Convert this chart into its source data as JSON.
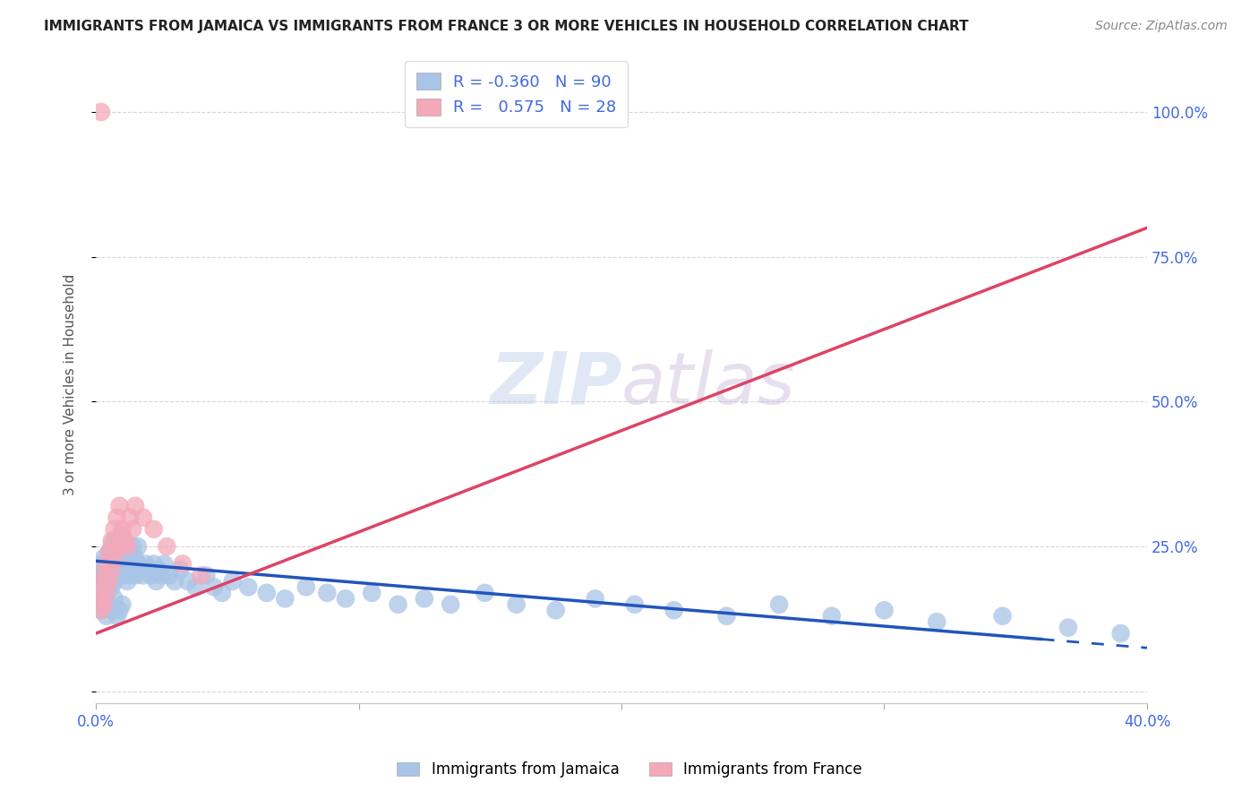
{
  "title": "IMMIGRANTS FROM JAMAICA VS IMMIGRANTS FROM FRANCE 3 OR MORE VEHICLES IN HOUSEHOLD CORRELATION CHART",
  "source": "Source: ZipAtlas.com",
  "ylabel": "3 or more Vehicles in Household",
  "xlim": [
    0.0,
    0.4
  ],
  "ylim": [
    -0.02,
    1.08
  ],
  "watermark_part1": "ZIP",
  "watermark_part2": "atlas",
  "legend_jamaica_R": "-0.360",
  "legend_jamaica_N": "90",
  "legend_france_R": "0.575",
  "legend_france_N": "28",
  "jamaica_color": "#a8c4e6",
  "france_color": "#f4a8b8",
  "jamaica_line_color": "#2255bb",
  "france_line_color": "#dd4466",
  "background_color": "#ffffff",
  "grid_color": "#cccccc",
  "title_color": "#222222",
  "right_tick_color": "#4169e1",
  "bottom_tick_color": "#4169e1",
  "jamaica_x": [
    0.001,
    0.002,
    0.002,
    0.003,
    0.003,
    0.003,
    0.004,
    0.004,
    0.004,
    0.005,
    0.005,
    0.005,
    0.006,
    0.006,
    0.006,
    0.007,
    0.007,
    0.007,
    0.008,
    0.008,
    0.009,
    0.009,
    0.01,
    0.01,
    0.01,
    0.011,
    0.011,
    0.012,
    0.012,
    0.013,
    0.013,
    0.014,
    0.014,
    0.015,
    0.015,
    0.016,
    0.016,
    0.017,
    0.018,
    0.019,
    0.02,
    0.021,
    0.022,
    0.023,
    0.024,
    0.025,
    0.026,
    0.028,
    0.03,
    0.032,
    0.035,
    0.038,
    0.042,
    0.045,
    0.048,
    0.052,
    0.058,
    0.065,
    0.072,
    0.08,
    0.088,
    0.095,
    0.105,
    0.115,
    0.125,
    0.135,
    0.148,
    0.16,
    0.175,
    0.19,
    0.205,
    0.22,
    0.24,
    0.26,
    0.28,
    0.3,
    0.32,
    0.345,
    0.37,
    0.39,
    0.001,
    0.002,
    0.003,
    0.004,
    0.005,
    0.006,
    0.007,
    0.008,
    0.009,
    0.01
  ],
  "jamaica_y": [
    0.2,
    0.19,
    0.22,
    0.18,
    0.21,
    0.23,
    0.17,
    0.2,
    0.22,
    0.19,
    0.21,
    0.24,
    0.18,
    0.2,
    0.25,
    0.19,
    0.22,
    0.26,
    0.2,
    0.23,
    0.21,
    0.24,
    0.2,
    0.22,
    0.27,
    0.21,
    0.23,
    0.19,
    0.22,
    0.2,
    0.24,
    0.21,
    0.25,
    0.2,
    0.23,
    0.22,
    0.25,
    0.21,
    0.2,
    0.22,
    0.21,
    0.2,
    0.22,
    0.19,
    0.21,
    0.2,
    0.22,
    0.2,
    0.19,
    0.21,
    0.19,
    0.18,
    0.2,
    0.18,
    0.17,
    0.19,
    0.18,
    0.17,
    0.16,
    0.18,
    0.17,
    0.16,
    0.17,
    0.15,
    0.16,
    0.15,
    0.17,
    0.15,
    0.14,
    0.16,
    0.15,
    0.14,
    0.13,
    0.15,
    0.13,
    0.14,
    0.12,
    0.13,
    0.11,
    0.1,
    0.15,
    0.14,
    0.16,
    0.13,
    0.15,
    0.14,
    0.16,
    0.13,
    0.14,
    0.15
  ],
  "france_x": [
    0.001,
    0.002,
    0.002,
    0.003,
    0.003,
    0.004,
    0.004,
    0.005,
    0.005,
    0.006,
    0.006,
    0.007,
    0.007,
    0.008,
    0.008,
    0.009,
    0.01,
    0.011,
    0.012,
    0.013,
    0.014,
    0.015,
    0.018,
    0.022,
    0.027,
    0.033,
    0.04,
    0.002
  ],
  "france_y": [
    0.16,
    0.14,
    0.18,
    0.15,
    0.2,
    0.17,
    0.22,
    0.19,
    0.24,
    0.21,
    0.26,
    0.23,
    0.28,
    0.25,
    0.3,
    0.32,
    0.28,
    0.26,
    0.25,
    0.3,
    0.28,
    0.32,
    0.3,
    0.28,
    0.25,
    0.22,
    0.2,
    1.0
  ],
  "jamaica_line_x": [
    0.0,
    0.4
  ],
  "jamaica_line_y": [
    0.225,
    0.075
  ],
  "france_line_x": [
    0.0,
    0.4
  ],
  "france_line_y": [
    0.1,
    0.8
  ]
}
